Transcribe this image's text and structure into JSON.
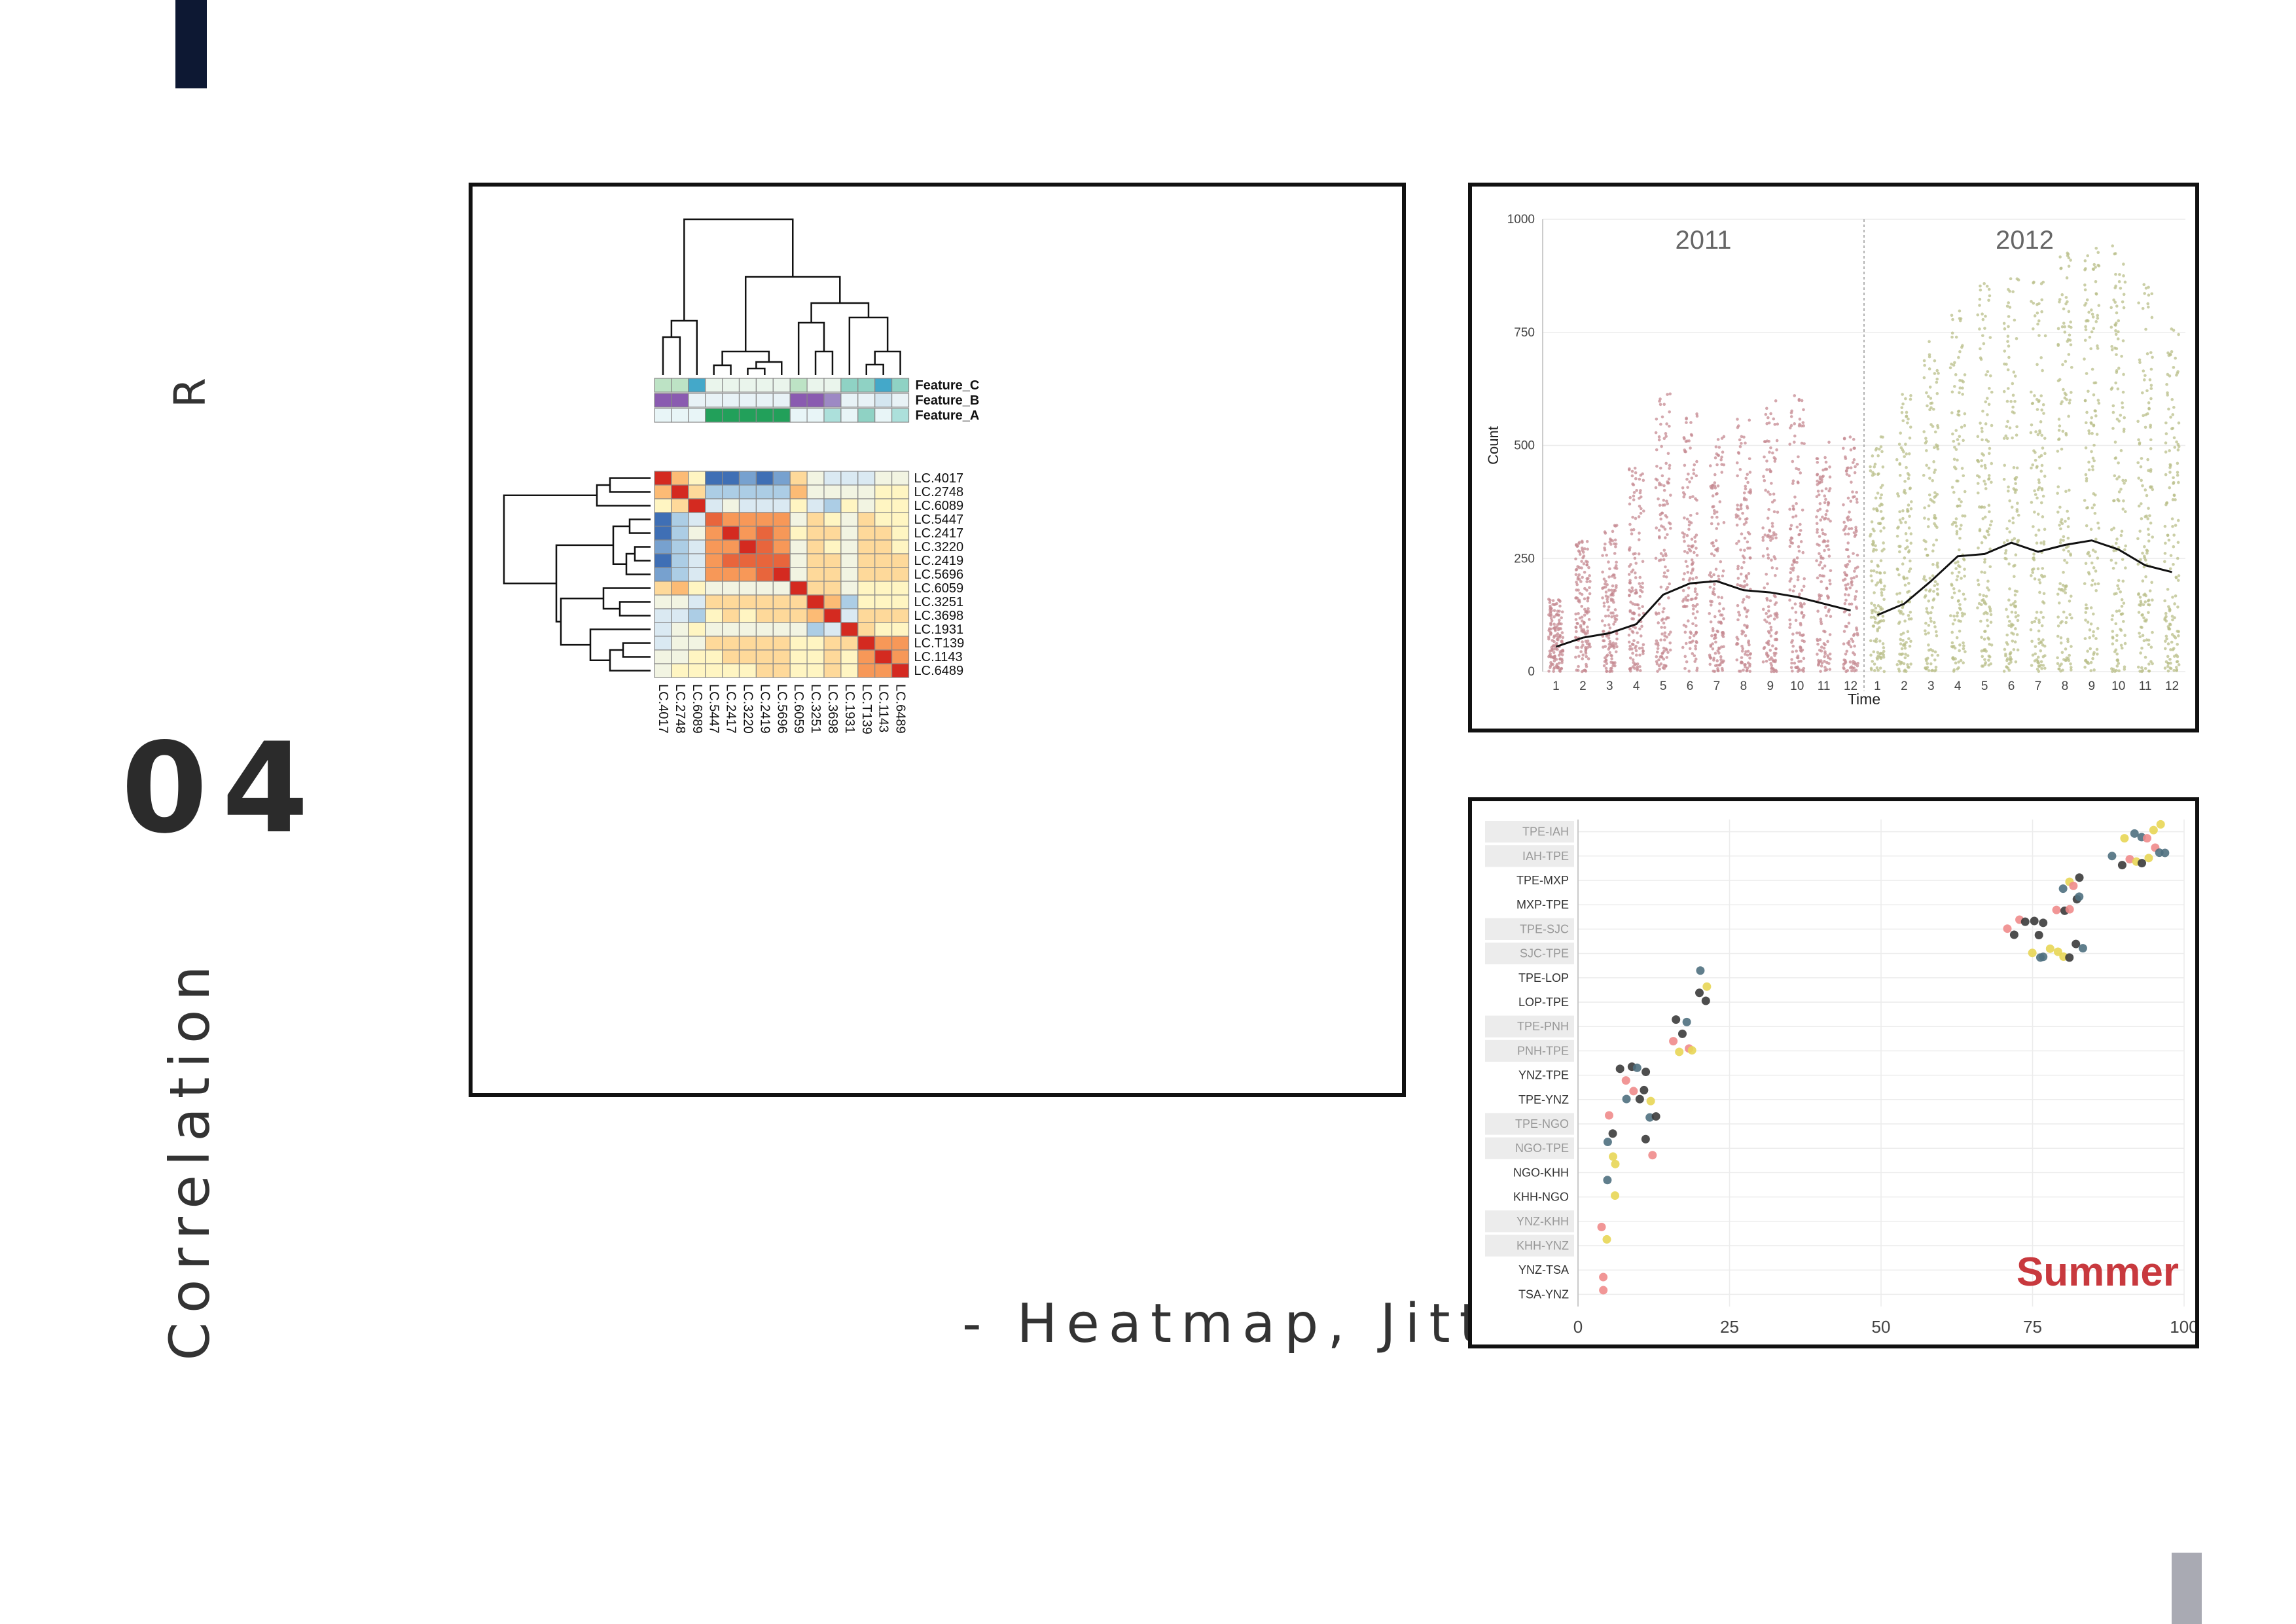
{
  "page": {
    "side_label": "R",
    "section_number": "04",
    "topic": "Correlation",
    "subtitle": "- Heatmap, Jitter"
  },
  "colors": {
    "accent_dark": "#0d1833",
    "accent_gray": "#a9aab3",
    "heat_high": "#d42a20",
    "heat_low": "#3f6fb5",
    "y2011": "#c58a92",
    "y2012": "#b9bf8a",
    "summer_text": "#c8393e"
  },
  "chart_data": [
    {
      "type": "heatmap",
      "rows": [
        "LC.4017",
        "LC.2748",
        "LC.6089",
        "LC.5447",
        "LC.2417",
        "LC.3220",
        "LC.2419",
        "LC.5696",
        "LC.6059",
        "LC.3251",
        "LC.3698",
        "LC.1931",
        "LC.T139",
        "LC.1143",
        "LC.6489"
      ],
      "columns": [
        "LC.4017",
        "LC.2748",
        "LC.6089",
        "LC.5447",
        "LC.2417",
        "LC.3220",
        "LC.2419",
        "LC.5696",
        "LC.6059",
        "LC.3251",
        "LC.3698",
        "LC.1931",
        "LC.T139",
        "LC.1143",
        "LC.6489"
      ],
      "values": [
        [
          10,
          7,
          5,
          0,
          0,
          1,
          0,
          1,
          6,
          4,
          3,
          3,
          3,
          4,
          4
        ],
        [
          7,
          10,
          6,
          2,
          2,
          2,
          2,
          2,
          7,
          4,
          4,
          4,
          4,
          5,
          5
        ],
        [
          5,
          6,
          10,
          3,
          4,
          3,
          3,
          3,
          5,
          3,
          2,
          5,
          4,
          5,
          5
        ],
        [
          0,
          2,
          3,
          9,
          8,
          8,
          8,
          8,
          4,
          6,
          5,
          4,
          6,
          5,
          5
        ],
        [
          0,
          2,
          4,
          8,
          10,
          8,
          9,
          8,
          5,
          6,
          6,
          4,
          6,
          6,
          5
        ],
        [
          1,
          2,
          3,
          8,
          8,
          10,
          9,
          8,
          4,
          6,
          5,
          4,
          6,
          6,
          5
        ],
        [
          0,
          2,
          3,
          8,
          9,
          9,
          9,
          9,
          4,
          6,
          6,
          4,
          6,
          6,
          6
        ],
        [
          1,
          2,
          3,
          8,
          8,
          8,
          9,
          10,
          4,
          6,
          6,
          4,
          6,
          6,
          6
        ],
        [
          6,
          7,
          5,
          4,
          4,
          4,
          4,
          4,
          10,
          6,
          6,
          4,
          5,
          5,
          5
        ],
        [
          4,
          4,
          3,
          6,
          6,
          6,
          6,
          6,
          6,
          10,
          7,
          2,
          5,
          5,
          5
        ],
        [
          3,
          3,
          2,
          5,
          6,
          5,
          6,
          6,
          6,
          7,
          10,
          3,
          6,
          6,
          6
        ],
        [
          3,
          4,
          5,
          4,
          4,
          4,
          4,
          4,
          4,
          2,
          3,
          10,
          6,
          5,
          5
        ],
        [
          3,
          4,
          4,
          6,
          6,
          6,
          6,
          6,
          5,
          5,
          6,
          6,
          10,
          8,
          8
        ],
        [
          4,
          4,
          5,
          5,
          6,
          6,
          6,
          6,
          5,
          5,
          6,
          5,
          8,
          10,
          8
        ],
        [
          4,
          5,
          5,
          5,
          5,
          5,
          6,
          6,
          5,
          5,
          6,
          5,
          8,
          8,
          10
        ]
      ],
      "annotations": [
        {
          "name": "Feature_C",
          "colors": [
            "#bde3c5",
            "#bde3c5",
            "#44a8c9",
            "#eaf5ec",
            "#eaf5ec",
            "#eaf5ec",
            "#eaf5ec",
            "#eaf5ec",
            "#bde3c5",
            "#eaf5ec",
            "#eaf5ec",
            "#8fd2c4",
            "#8fd2c4",
            "#44a8c9",
            "#8fd2c4"
          ]
        },
        {
          "name": "Feature_B",
          "colors": [
            "#8a5bb0",
            "#8a5bb0",
            "#e8f2f6",
            "#e8f2f6",
            "#e8f2f6",
            "#e8f2f6",
            "#e8f2f6",
            "#e8f2f6",
            "#8a5bb0",
            "#8a5bb0",
            "#9d89c4",
            "#e8f2f6",
            "#e8f2f6",
            "#d4e6f0",
            "#e8f2f6"
          ]
        },
        {
          "name": "Feature_A",
          "colors": [
            "#e8f5f7",
            "#e8f5f7",
            "#e8f5f7",
            "#22a05a",
            "#22a05a",
            "#22a05a",
            "#22a05a",
            "#22a05a",
            "#e8f5f7",
            "#e8f5f7",
            "#ace0db",
            "#e8f5f7",
            "#8fd2c4",
            "#e8f5f7",
            "#ace0db"
          ]
        }
      ]
    },
    {
      "type": "scatter",
      "subtype": "jitter",
      "facets": [
        "2011",
        "2012"
      ],
      "xlabel": "Time",
      "ylabel": "Count",
      "x_ticks": [
        "1",
        "2",
        "3",
        "4",
        "5",
        "6",
        "7",
        "8",
        "9",
        "10",
        "11",
        "12"
      ],
      "y_ticks": [
        "0",
        "250",
        "500",
        "750",
        "1000"
      ],
      "ylim": [
        0,
        1000
      ],
      "series": [
        {
          "facet": "2011",
          "months": [
            1,
            2,
            3,
            4,
            5,
            6,
            7,
            8,
            9,
            10,
            11,
            12
          ],
          "mean": [
            55,
            75,
            85,
            105,
            170,
            195,
            200,
            180,
            175,
            165,
            150,
            135
          ],
          "max": [
            160,
            290,
            330,
            460,
            620,
            570,
            540,
            560,
            600,
            620,
            510,
            520
          ]
        },
        {
          "facet": "2012",
          "months": [
            1,
            2,
            3,
            4,
            5,
            6,
            7,
            8,
            9,
            10,
            11,
            12
          ],
          "mean": [
            125,
            150,
            200,
            255,
            260,
            285,
            265,
            280,
            290,
            270,
            235,
            220
          ],
          "max": [
            520,
            620,
            730,
            800,
            860,
            870,
            880,
            930,
            960,
            950,
            860,
            760
          ]
        }
      ]
    },
    {
      "type": "scatter",
      "subtype": "jitter",
      "categories": [
        "TPE-IAH",
        "IAH-TPE",
        "TPE-MXP",
        "MXP-TPE",
        "TPE-SJC",
        "SJC-TPE",
        "TPE-LOP",
        "LOP-TPE",
        "TPE-PNH",
        "PNH-TPE",
        "YNZ-TPE",
        "TPE-YNZ",
        "TPE-NGO",
        "NGO-TPE",
        "NGO-KHH",
        "KHH-NGO",
        "YNZ-KHH",
        "KHH-YNZ",
        "YNZ-TSA",
        "TSA-YNZ"
      ],
      "shaded_categories": [
        "TPE-IAH",
        "IAH-TPE",
        "TPE-SJC",
        "SJC-TPE",
        "TPE-PNH",
        "PNH-TPE",
        "TPE-NGO",
        "NGO-TPE",
        "YNZ-KHH",
        "KHH-YNZ"
      ],
      "x_ticks": [
        "0",
        "25",
        "50",
        "75",
        "100"
      ],
      "xlim": [
        0,
        100
      ],
      "annotation": "Summer",
      "point_colors": [
        "#f08b8b",
        "#4f7080",
        "#e8d655",
        "#3b3b3b"
      ],
      "series": [
        {
          "category": "TPE-IAH",
          "x": [
            90,
            92,
            93,
            94,
            95,
            96
          ]
        },
        {
          "category": "IAH-TPE",
          "x": [
            88,
            90,
            91,
            92,
            93,
            94,
            95,
            96,
            97
          ]
        },
        {
          "category": "TPE-MXP",
          "x": [
            80,
            81,
            82,
            83
          ]
        },
        {
          "category": "MXP-TPE",
          "x": [
            79,
            80,
            81,
            82,
            83
          ]
        },
        {
          "category": "TPE-SJC",
          "x": [
            71,
            72,
            73,
            74,
            75,
            76,
            77
          ]
        },
        {
          "category": "SJC-TPE",
          "x": [
            75,
            76,
            77,
            78,
            79,
            80,
            81,
            82,
            83
          ]
        },
        {
          "category": "TPE-LOP",
          "x": [
            20,
            21
          ]
        },
        {
          "category": "LOP-TPE",
          "x": [
            20,
            21
          ]
        },
        {
          "category": "TPE-PNH",
          "x": [
            16,
            17,
            18
          ]
        },
        {
          "category": "PNH-TPE",
          "x": [
            16,
            17,
            18,
            19
          ]
        },
        {
          "category": "YNZ-TPE",
          "x": [
            7,
            8,
            9,
            10,
            11
          ]
        },
        {
          "category": "TPE-YNZ",
          "x": [
            8,
            9,
            10,
            11,
            12
          ]
        },
        {
          "category": "TPE-NGO",
          "x": [
            5,
            6,
            12,
            13
          ]
        },
        {
          "category": "NGO-TPE",
          "x": [
            5,
            6,
            11,
            12
          ]
        },
        {
          "category": "NGO-KHH",
          "x": [
            5,
            6
          ]
        },
        {
          "category": "KHH-NGO",
          "x": [
            6
          ]
        },
        {
          "category": "YNZ-KHH",
          "x": [
            4
          ]
        },
        {
          "category": "KHH-YNZ",
          "x": [
            5
          ]
        },
        {
          "category": "YNZ-TSA",
          "x": [
            4
          ]
        },
        {
          "category": "TSA-YNZ",
          "x": [
            4
          ]
        }
      ]
    }
  ]
}
